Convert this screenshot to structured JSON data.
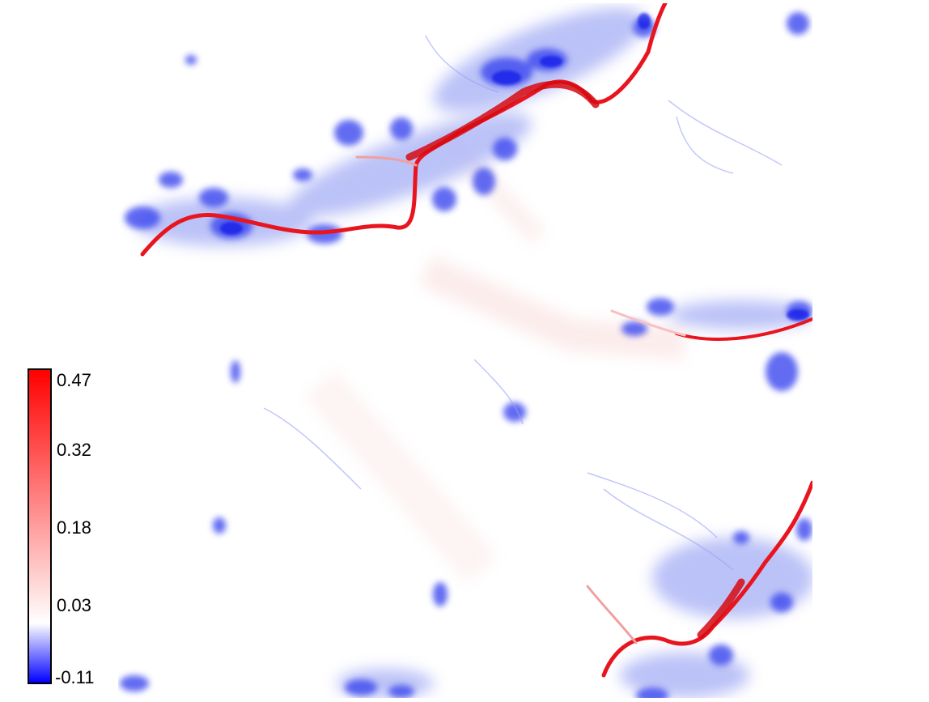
{
  "colorbar": {
    "ticks": [
      "0.47",
      "0.32",
      "0.18",
      "0.03",
      "-0.11"
    ],
    "max_value": 0.47,
    "min_value": -0.11,
    "colors": {
      "high": "#ff0000",
      "mid": "#ffffff",
      "low": "#0000ff"
    }
  },
  "field": {
    "colors": {
      "crack": "#e8141e",
      "crack_light": "#f4a0a0",
      "blob": "#3a46ee",
      "blob_light": "#b4bbf6",
      "background": "#ffffff"
    }
  }
}
